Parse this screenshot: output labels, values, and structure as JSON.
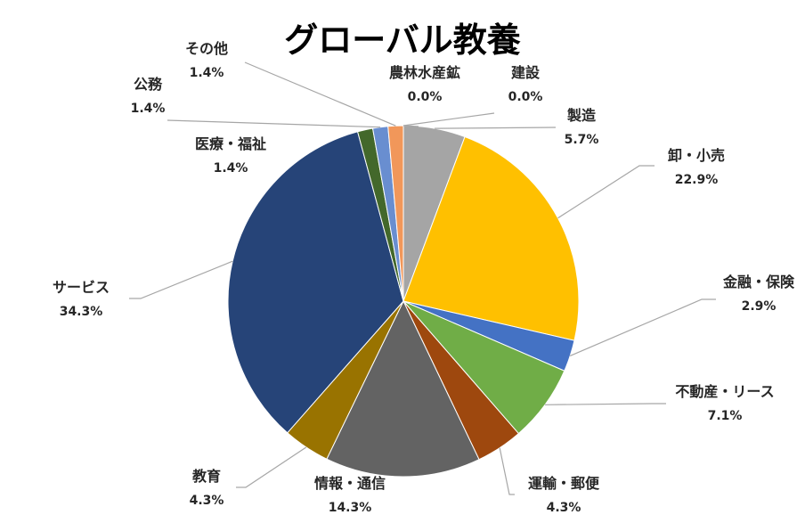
{
  "chart_data": {
    "type": "pie",
    "title": "グローバル教養",
    "slices": [
      {
        "name": "農林水産鉱",
        "value": 0.0,
        "label": "0.0%",
        "color": "#ed7d31"
      },
      {
        "name": "建設",
        "value": 0.0,
        "label": "0.0%",
        "color": "#4472c4"
      },
      {
        "name": "製造",
        "value": 5.7,
        "label": "5.7%",
        "color": "#a5a5a5"
      },
      {
        "name": "卸・小売",
        "value": 22.9,
        "label": "22.9%",
        "color": "#ffc000"
      },
      {
        "name": "金融・保険",
        "value": 2.9,
        "label": "2.9%",
        "color": "#4472c4"
      },
      {
        "name": "不動産・リース",
        "value": 7.1,
        "label": "7.1%",
        "color": "#70ad47"
      },
      {
        "name": "運輸・郵便",
        "value": 4.3,
        "label": "4.3%",
        "color": "#9e480e"
      },
      {
        "name": "情報・通信",
        "value": 14.3,
        "label": "14.3%",
        "color": "#636363"
      },
      {
        "name": "教育",
        "value": 4.3,
        "label": "4.3%",
        "color": "#997300"
      },
      {
        "name": "サービス",
        "value": 34.3,
        "label": "34.3%",
        "color": "#264478"
      },
      {
        "name": "医療・福祉",
        "value": 1.4,
        "label": "1.4%",
        "color": "#43682b"
      },
      {
        "name": "公務",
        "value": 1.4,
        "label": "1.4%",
        "color": "#698ed0"
      },
      {
        "name": "その他",
        "value": 1.4,
        "label": "1.4%",
        "color": "#f1975a"
      }
    ]
  }
}
